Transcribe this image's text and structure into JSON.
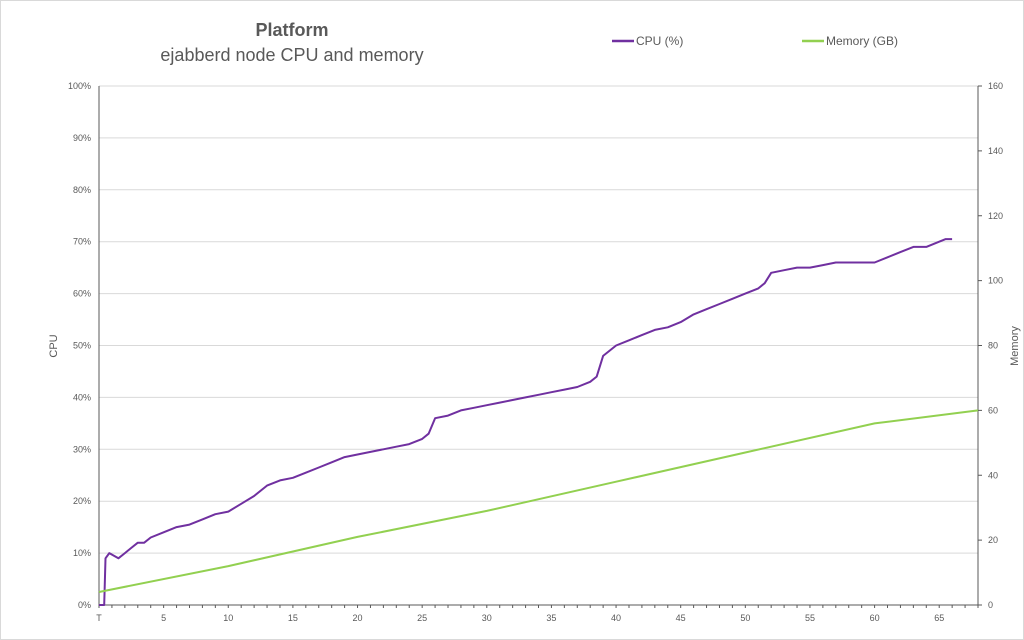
{
  "chart_data": {
    "type": "line",
    "title": "Platform",
    "subtitle": "ejabberd node CPU and memory",
    "xlabel": "",
    "ylabel": "CPU",
    "y2label": "Memory",
    "xlim": [
      0,
      68
    ],
    "ylim": [
      0,
      100
    ],
    "y2lim": [
      0,
      160
    ],
    "x_tick_labels": [
      "T",
      "5",
      "10",
      "15",
      "20",
      "25",
      "30",
      "35",
      "40",
      "45",
      "50",
      "55",
      "60",
      "65"
    ],
    "y_tick_labels": [
      "0%",
      "10%",
      "20%",
      "30%",
      "40%",
      "50%",
      "60%",
      "70%",
      "80%",
      "90%",
      "100%"
    ],
    "y2_tick_labels": [
      "0",
      "20",
      "40",
      "60",
      "80",
      "100",
      "120",
      "140",
      "160"
    ],
    "grid": true,
    "legend_position": "top",
    "series": [
      {
        "name": "CPU (%)",
        "axis": "left",
        "color": "#7030a0",
        "points": [
          [
            0.0,
            0
          ],
          [
            0.4,
            0
          ],
          [
            0.5,
            9
          ],
          [
            0.8,
            10
          ],
          [
            1.5,
            9
          ],
          [
            2,
            10
          ],
          [
            2.5,
            11
          ],
          [
            3,
            12
          ],
          [
            3.5,
            12
          ],
          [
            4,
            13
          ],
          [
            5,
            14
          ],
          [
            6,
            15
          ],
          [
            7,
            15.5
          ],
          [
            8,
            16.5
          ],
          [
            9,
            17.5
          ],
          [
            10,
            18
          ],
          [
            11,
            19.5
          ],
          [
            12,
            21
          ],
          [
            13,
            23
          ],
          [
            14,
            24
          ],
          [
            15,
            24.5
          ],
          [
            16,
            25.5
          ],
          [
            17,
            26.5
          ],
          [
            18,
            27.5
          ],
          [
            19,
            28.5
          ],
          [
            20,
            29
          ],
          [
            21,
            29.5
          ],
          [
            22,
            30
          ],
          [
            23,
            30.5
          ],
          [
            24,
            31
          ],
          [
            25,
            32
          ],
          [
            25.5,
            33
          ],
          [
            26,
            36
          ],
          [
            27,
            36.5
          ],
          [
            28,
            37.5
          ],
          [
            29,
            38
          ],
          [
            30,
            38.5
          ],
          [
            31,
            39
          ],
          [
            32,
            39.5
          ],
          [
            33,
            40
          ],
          [
            34,
            40.5
          ],
          [
            35,
            41
          ],
          [
            36,
            41.5
          ],
          [
            37,
            42
          ],
          [
            38,
            43
          ],
          [
            38.5,
            44
          ],
          [
            39,
            48
          ],
          [
            40,
            50
          ],
          [
            41,
            51
          ],
          [
            42,
            52
          ],
          [
            43,
            53
          ],
          [
            44,
            53.5
          ],
          [
            45,
            54.5
          ],
          [
            46,
            56
          ],
          [
            47,
            57
          ],
          [
            48,
            58
          ],
          [
            49,
            59
          ],
          [
            50,
            60
          ],
          [
            51,
            61
          ],
          [
            51.5,
            62
          ],
          [
            52,
            64
          ],
          [
            53,
            64.5
          ],
          [
            54,
            65
          ],
          [
            55,
            65
          ],
          [
            56,
            65.5
          ],
          [
            57,
            66
          ],
          [
            58,
            66
          ],
          [
            59,
            66
          ],
          [
            60,
            66
          ],
          [
            61,
            67
          ],
          [
            62,
            68
          ],
          [
            63,
            69
          ],
          [
            64,
            69
          ],
          [
            65,
            70
          ],
          [
            65.5,
            70.5
          ],
          [
            66,
            70.5
          ]
        ]
      },
      {
        "name": "Memory (GB)",
        "axis": "right",
        "color": "#92d050",
        "points": [
          [
            0,
            4
          ],
          [
            10,
            12
          ],
          [
            20,
            21
          ],
          [
            30,
            29
          ],
          [
            40,
            38
          ],
          [
            50,
            47
          ],
          [
            60,
            56
          ],
          [
            68,
            60
          ]
        ]
      }
    ]
  }
}
